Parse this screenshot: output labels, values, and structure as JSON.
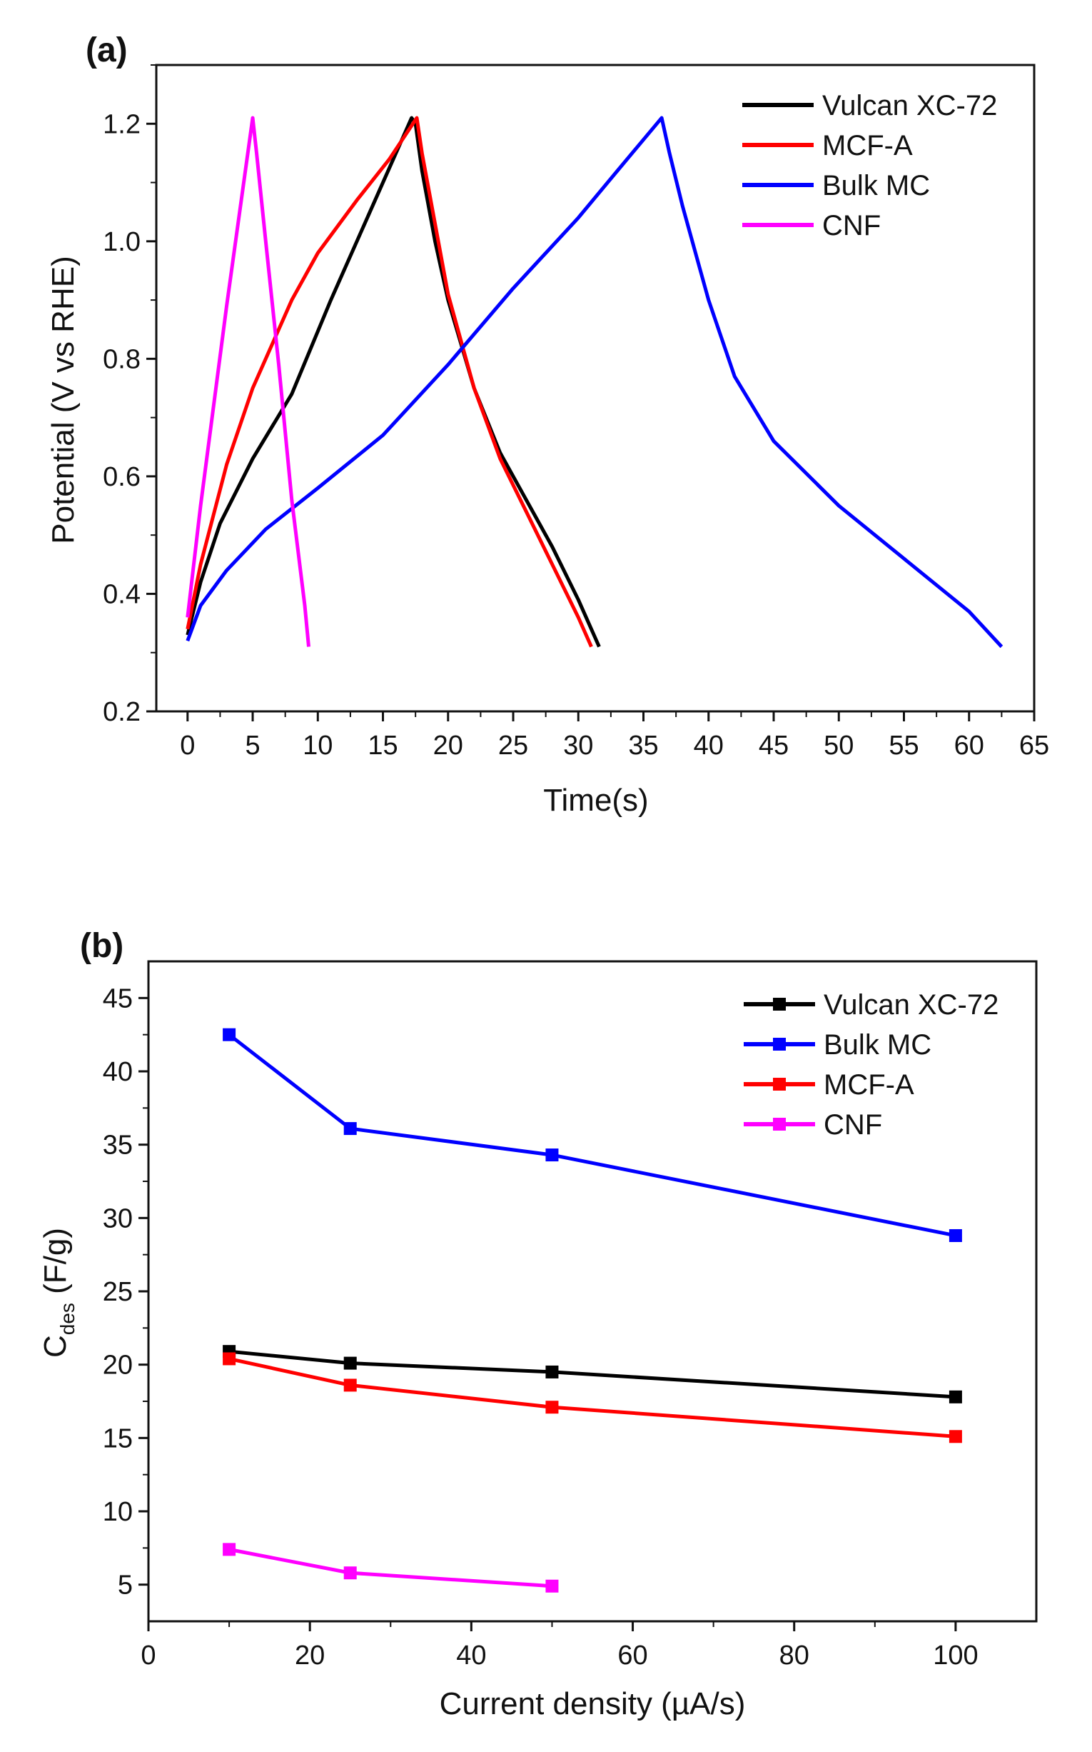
{
  "chart_data": [
    {
      "type": "line",
      "panel_label": "(a)",
      "xlabel": "Time(s)",
      "ylabel": "Potential (V vs RHE)",
      "xlim": [
        -2.4,
        65
      ],
      "ylim": [
        0.2,
        1.3
      ],
      "xticks": [
        0,
        5,
        10,
        15,
        20,
        25,
        30,
        35,
        40,
        45,
        50,
        55,
        60,
        65
      ],
      "yticks": [
        0.2,
        0.4,
        0.6,
        0.8,
        1.0,
        1.2
      ],
      "ytick_labels": [
        "0.2",
        "0.4",
        "0.6",
        "0.8",
        "1.0",
        "1.2"
      ],
      "legend_position": "top-right",
      "series": [
        {
          "name": "Vulcan XC-72",
          "color": "#000000",
          "points": [
            [
              0,
              0.33
            ],
            [
              1,
              0.42
            ],
            [
              2.5,
              0.52
            ],
            [
              5,
              0.63
            ],
            [
              8,
              0.74
            ],
            [
              11,
              0.9
            ],
            [
              14,
              1.05
            ],
            [
              17.2,
              1.21
            ],
            [
              17.5,
              1.2
            ],
            [
              18,
              1.12
            ],
            [
              19,
              1.0
            ],
            [
              20,
              0.9
            ],
            [
              22,
              0.75
            ],
            [
              24,
              0.64
            ],
            [
              26,
              0.56
            ],
            [
              28,
              0.48
            ],
            [
              30,
              0.39
            ],
            [
              31.6,
              0.31
            ]
          ]
        },
        {
          "name": "MCF-A",
          "color": "#ff0000",
          "points": [
            [
              0,
              0.34
            ],
            [
              1,
              0.45
            ],
            [
              3,
              0.62
            ],
            [
              5,
              0.75
            ],
            [
              8,
              0.9
            ],
            [
              10,
              0.98
            ],
            [
              13,
              1.07
            ],
            [
              15.5,
              1.14
            ],
            [
              17.6,
              1.21
            ],
            [
              18,
              1.15
            ],
            [
              19,
              1.03
            ],
            [
              20,
              0.91
            ],
            [
              22,
              0.75
            ],
            [
              24,
              0.63
            ],
            [
              26,
              0.54
            ],
            [
              28,
              0.45
            ],
            [
              30,
              0.36
            ],
            [
              31,
              0.31
            ]
          ]
        },
        {
          "name": "Bulk MC",
          "color": "#0000ff",
          "points": [
            [
              0,
              0.32
            ],
            [
              1,
              0.38
            ],
            [
              3,
              0.44
            ],
            [
              6,
              0.51
            ],
            [
              10,
              0.58
            ],
            [
              15,
              0.67
            ],
            [
              20,
              0.79
            ],
            [
              25,
              0.92
            ],
            [
              30,
              1.04
            ],
            [
              33,
              1.12
            ],
            [
              36.4,
              1.21
            ],
            [
              37,
              1.15
            ],
            [
              38,
              1.06
            ],
            [
              40,
              0.9
            ],
            [
              42,
              0.77
            ],
            [
              45,
              0.66
            ],
            [
              50,
              0.55
            ],
            [
              55,
              0.46
            ],
            [
              60,
              0.37
            ],
            [
              62.5,
              0.31
            ]
          ]
        },
        {
          "name": "CNF",
          "color": "#ff00ff",
          "points": [
            [
              0,
              0.36
            ],
            [
              1,
              0.55
            ],
            [
              2,
              0.72
            ],
            [
              3,
              0.89
            ],
            [
              4,
              1.05
            ],
            [
              5,
              1.21
            ],
            [
              5.3,
              1.15
            ],
            [
              6,
              1.0
            ],
            [
              7,
              0.79
            ],
            [
              8,
              0.56
            ],
            [
              9,
              0.38
            ],
            [
              9.3,
              0.31
            ]
          ]
        }
      ]
    },
    {
      "type": "line",
      "panel_label": "(b)",
      "xlabel": "Current density (µA/s)",
      "ylabel_main": "C",
      "ylabel_sub": "des",
      "ylabel_unit": " (F/g)",
      "xlim": [
        0,
        110
      ],
      "ylim": [
        2.5,
        47.5
      ],
      "xticks": [
        0,
        20,
        40,
        60,
        80,
        100
      ],
      "yticks": [
        5,
        10,
        15,
        20,
        25,
        30,
        35,
        40,
        45
      ],
      "legend_position": "top-right",
      "markers": "square",
      "series": [
        {
          "name": "Vulcan XC-72",
          "color": "#000000",
          "x": [
            10,
            25,
            50,
            100
          ],
          "y": [
            20.9,
            20.1,
            19.5,
            17.8
          ]
        },
        {
          "name": "Bulk MC",
          "color": "#0000ff",
          "x": [
            10,
            25,
            50,
            100
          ],
          "y": [
            42.5,
            36.1,
            34.3,
            28.8
          ]
        },
        {
          "name": "MCF-A",
          "color": "#ff0000",
          "x": [
            10,
            25,
            50,
            100
          ],
          "y": [
            20.4,
            18.6,
            17.1,
            15.1
          ]
        },
        {
          "name": "CNF",
          "color": "#ff00ff",
          "x": [
            10,
            25,
            50
          ],
          "y": [
            7.4,
            5.8,
            4.9
          ]
        }
      ]
    }
  ]
}
